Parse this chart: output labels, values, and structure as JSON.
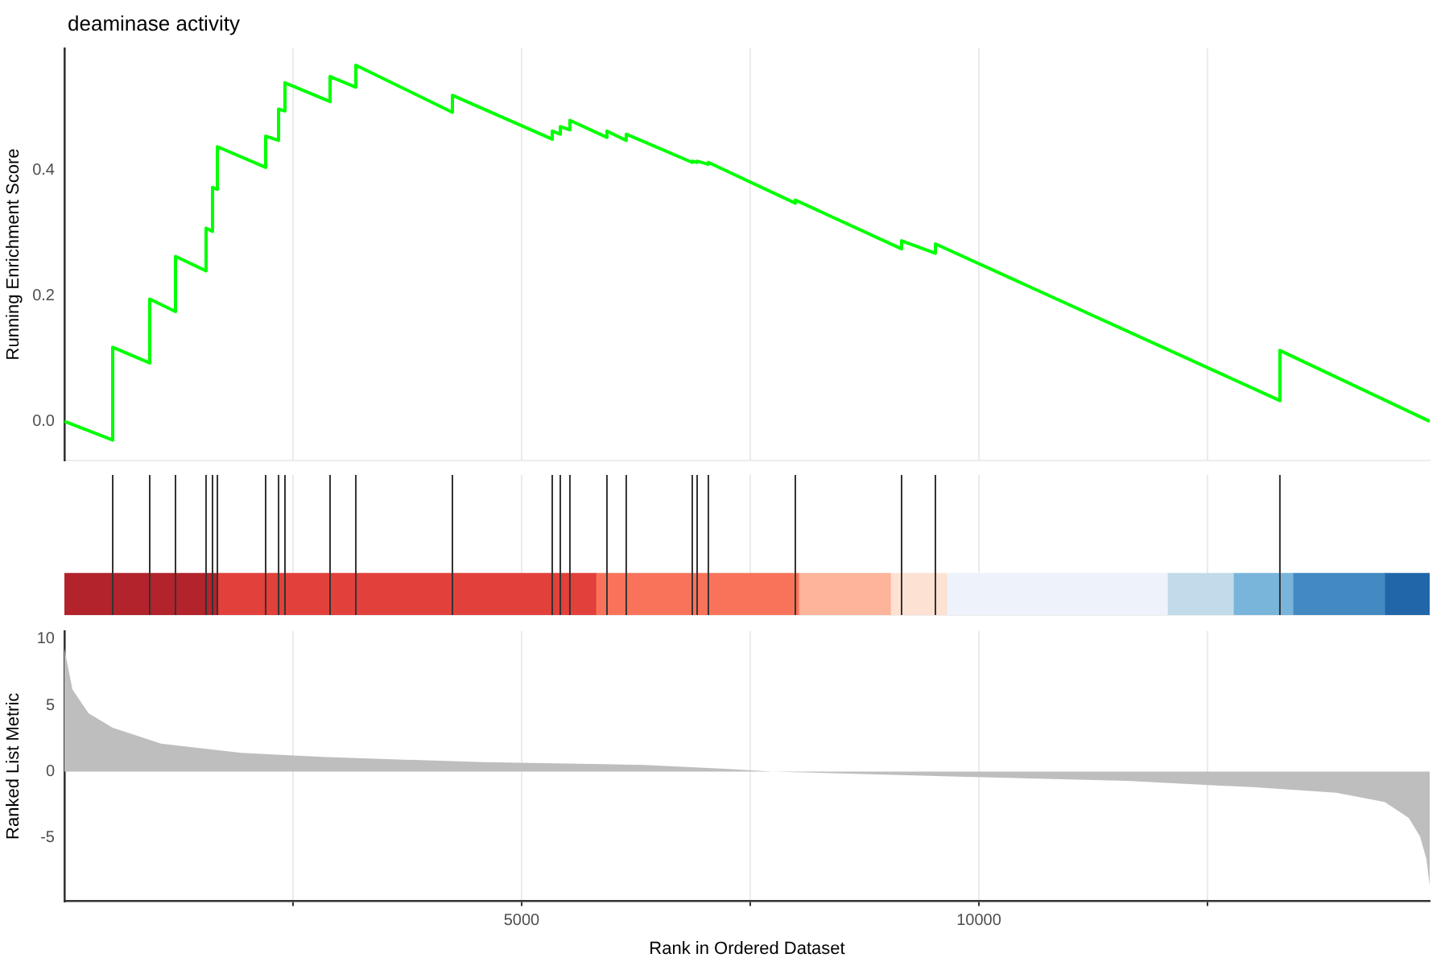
{
  "chart_data": [
    {
      "type": "line",
      "title": "deaminase activity",
      "ylabel": "Running Enrichment Score",
      "xlim": [
        0,
        14930
      ],
      "ylim": [
        -0.0625,
        0.595
      ],
      "xticks": [
        {
          "value": 2500,
          "label": null
        },
        {
          "value": 5000,
          "label": null
        },
        {
          "value": 7500,
          "label": null
        },
        {
          "value": 10000,
          "label": null
        },
        {
          "value": 12500,
          "label": null
        }
      ],
      "yticks": [
        {
          "value": 0,
          "label": "0.0"
        },
        {
          "value": 0.2,
          "label": "0.2"
        },
        {
          "value": 0.4,
          "label": "0.4"
        }
      ],
      "grid": "x",
      "tick_labels": "y",
      "series": [
        {
          "color": "#00ff00",
          "x": [
            0,
            528,
            528,
            933,
            933,
            1215,
            1215,
            1549,
            1549,
            1620,
            1620,
            1673,
            1673,
            2201,
            2201,
            2342,
            2342,
            2412,
            2412,
            2905,
            2905,
            3187,
            3187,
            4243,
            4243,
            5335,
            5335,
            5423,
            5423,
            5528,
            5528,
            5933,
            5933,
            6144,
            6144,
            6866,
            6866,
            6919,
            6919,
            7042,
            7042,
            7993,
            7993,
            9155,
            9155,
            9525,
            9525,
            13292,
            13292,
            14930
          ],
          "values": [
            0,
            -0.03,
            0.118,
            0.093,
            0.195,
            0.175,
            0.263,
            0.24,
            0.308,
            0.303,
            0.373,
            0.37,
            0.438,
            0.405,
            0.455,
            0.448,
            0.498,
            0.495,
            0.54,
            0.51,
            0.55,
            0.533,
            0.568,
            0.493,
            0.52,
            0.45,
            0.463,
            0.458,
            0.47,
            0.465,
            0.48,
            0.453,
            0.463,
            0.448,
            0.458,
            0.413,
            0.415,
            0.413,
            0.415,
            0.41,
            0.413,
            0.348,
            0.353,
            0.275,
            0.288,
            0.268,
            0.283,
            0.033,
            0.113,
            0
          ]
        }
      ]
    },
    {
      "type": "bar",
      "orientation": "horizontal",
      "stacked": true,
      "categories": [
        null
      ],
      "xlim": [
        0,
        14930
      ],
      "grid": "x",
      "tick_labels": false,
      "xticks": [
        {
          "value": 2500,
          "label": null
        },
        {
          "value": 5000,
          "label": null
        },
        {
          "value": 7500,
          "label": null
        },
        {
          "value": 10000,
          "label": null
        },
        {
          "value": 12500,
          "label": null
        }
      ],
      "series": [
        {
          "color": "#b2232b",
          "values": [
            1673
          ]
        },
        {
          "color": "#e2403b",
          "values": [
            4137
          ]
        },
        {
          "color": "#f9735a",
          "values": [
            2218
          ]
        },
        {
          "color": "#fdb49a",
          "values": [
            1004
          ]
        },
        {
          "color": "#fde1d3",
          "values": [
            616
          ]
        },
        {
          "color": "#eef3fb",
          "values": [
            2412
          ]
        },
        {
          "color": "#c2dbea",
          "values": [
            722
          ]
        },
        {
          "color": "#79b5da",
          "values": [
            651
          ]
        },
        {
          "color": "#4389c2",
          "values": [
            1004
          ]
        },
        {
          "color": "#2066a9",
          "values": [
            493
          ]
        }
      ],
      "ref_lines": [
        {
          "axis": "x",
          "value": 528
        },
        {
          "axis": "x",
          "value": 933
        },
        {
          "axis": "x",
          "value": 1215
        },
        {
          "axis": "x",
          "value": 1549
        },
        {
          "axis": "x",
          "value": 1620
        },
        {
          "axis": "x",
          "value": 1673
        },
        {
          "axis": "x",
          "value": 2201
        },
        {
          "axis": "x",
          "value": 2342
        },
        {
          "axis": "x",
          "value": 2412
        },
        {
          "axis": "x",
          "value": 2905
        },
        {
          "axis": "x",
          "value": 3187
        },
        {
          "axis": "x",
          "value": 4243
        },
        {
          "axis": "x",
          "value": 5335
        },
        {
          "axis": "x",
          "value": 5423
        },
        {
          "axis": "x",
          "value": 5528
        },
        {
          "axis": "x",
          "value": 5933
        },
        {
          "axis": "x",
          "value": 6144
        },
        {
          "axis": "x",
          "value": 6866
        },
        {
          "axis": "x",
          "value": 6919
        },
        {
          "axis": "x",
          "value": 7042
        },
        {
          "axis": "x",
          "value": 7993
        },
        {
          "axis": "x",
          "value": 9155
        },
        {
          "axis": "x",
          "value": 9525
        },
        {
          "axis": "x",
          "value": 13292
        }
      ]
    },
    {
      "type": "area",
      "xlabel": "Rank in Ordered Dataset",
      "ylabel": "Ranked List Metric",
      "xlim": [
        0,
        14930
      ],
      "ylim": [
        -9.8,
        10.6
      ],
      "grid": "x",
      "xticks": [
        {
          "value": 2500,
          "label": null
        },
        5000,
        {
          "value": 7500,
          "label": null
        },
        10000,
        {
          "value": 12500,
          "label": null
        }
      ],
      "yticks": [
        -5,
        0,
        5,
        10
      ],
      "color": "#bebebe",
      "x": [
        0,
        88,
        264,
        528,
        1056,
        1937,
        2817,
        4577,
        6338,
        7218,
        7746,
        9859,
        11620,
        13028,
        13908,
        14437,
        14701,
        14824,
        14894,
        14930
      ],
      "values": [
        9.3,
        6.2,
        4.4,
        3.3,
        2.1,
        1.4,
        1.1,
        0.7,
        0.5,
        0.2,
        0,
        -0.4,
        -0.7,
        -1.2,
        -1.6,
        -2.3,
        -3.5,
        -4.9,
        -6.6,
        -8.6
      ]
    }
  ]
}
